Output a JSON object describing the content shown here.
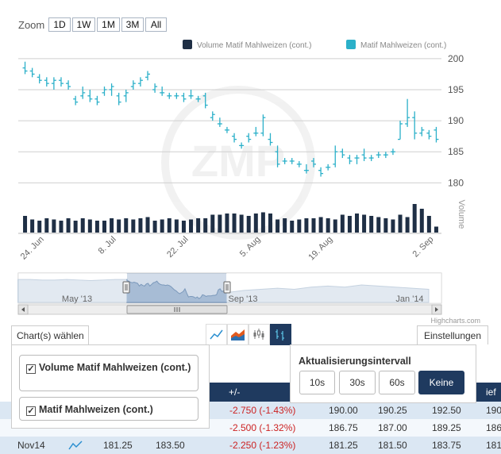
{
  "zoom": {
    "label": "Zoom",
    "buttons": [
      "1D",
      "1W",
      "1M",
      "3M",
      "All"
    ]
  },
  "legend": [
    {
      "name": "Volume Matif Mahlweizen (cont.)",
      "color": "#1f2f45"
    },
    {
      "name": "Matif Mahlweizen (cont.)",
      "color": "#2bb0c9"
    }
  ],
  "watermark": "ZMP",
  "credits": "Highcharts.com",
  "navigator": {
    "labels": [
      "May '13",
      "Sep '13",
      "Jan '14"
    ]
  },
  "chart_data": {
    "type": "ohlc",
    "title": "",
    "yaxis_price": {
      "ticks": [
        180,
        185,
        190,
        195,
        200
      ],
      "ylim": [
        178,
        201
      ]
    },
    "yaxis_volume_label": "Volume",
    "x_tick_labels": [
      "24. Jun",
      "8. Jul",
      "22. Jul",
      "5. Aug",
      "19. Aug",
      "2. Sep"
    ],
    "series": [
      {
        "name": "Matif Mahlweizen (cont.)",
        "color": "#2bb0c9",
        "ohlc": [
          [
            198.5,
            199.5,
            197.5,
            198.0
          ],
          [
            198.0,
            198.5,
            197.0,
            197.5
          ],
          [
            197.0,
            197.5,
            196.0,
            196.5
          ],
          [
            196.5,
            197.0,
            195.5,
            196.0
          ],
          [
            196.0,
            197.0,
            195.0,
            196.5
          ],
          [
            196.5,
            197.0,
            195.5,
            196.0
          ],
          [
            196.0,
            196.5,
            195.0,
            195.5
          ],
          [
            193.5,
            194.0,
            192.5,
            193.0
          ],
          [
            194.0,
            195.5,
            193.5,
            194.5
          ],
          [
            194.0,
            195.0,
            193.0,
            193.5
          ],
          [
            193.5,
            194.0,
            192.5,
            193.0
          ],
          [
            194.5,
            195.5,
            194.0,
            195.0
          ],
          [
            195.0,
            196.0,
            194.0,
            195.5
          ],
          [
            194.0,
            194.5,
            192.5,
            193.0
          ],
          [
            194.0,
            195.0,
            193.0,
            194.5
          ],
          [
            195.5,
            196.5,
            195.0,
            196.0
          ],
          [
            196.0,
            197.0,
            195.5,
            196.5
          ],
          [
            197.0,
            198.0,
            196.5,
            197.5
          ],
          [
            195.0,
            196.0,
            194.5,
            195.5
          ],
          [
            194.5,
            195.5,
            194.0,
            194.5
          ],
          [
            194.0,
            194.5,
            193.5,
            194.0
          ],
          [
            194.0,
            194.5,
            193.5,
            194.0
          ],
          [
            194.0,
            194.5,
            193.0,
            193.5
          ],
          [
            194.0,
            195.0,
            193.5,
            194.0
          ],
          [
            193.5,
            194.0,
            193.0,
            193.5
          ],
          [
            194.0,
            194.5,
            192.0,
            192.5
          ],
          [
            190.5,
            191.5,
            190.0,
            191.0
          ],
          [
            189.5,
            190.5,
            189.0,
            189.5
          ],
          [
            188.5,
            189.0,
            188.0,
            188.5
          ],
          [
            187.5,
            188.0,
            186.5,
            187.0
          ],
          [
            186.0,
            186.5,
            185.5,
            186.0
          ],
          [
            187.5,
            188.0,
            186.5,
            187.0
          ],
          [
            188.0,
            189.0,
            187.5,
            188.0
          ],
          [
            188.0,
            191.0,
            187.5,
            190.5
          ],
          [
            187.0,
            188.0,
            186.0,
            186.5
          ],
          [
            185.0,
            186.0,
            182.5,
            183.0
          ],
          [
            183.5,
            184.0,
            183.0,
            183.5
          ],
          [
            183.5,
            184.0,
            183.0,
            183.5
          ],
          [
            183.0,
            183.5,
            182.5,
            183.0
          ],
          [
            182.0,
            183.0,
            181.5,
            182.0
          ],
          [
            183.5,
            184.0,
            182.5,
            183.0
          ],
          [
            182.0,
            182.5,
            181.0,
            181.5
          ],
          [
            182.5,
            183.0,
            182.0,
            182.5
          ],
          [
            183.0,
            186.0,
            182.5,
            185.0
          ],
          [
            185.0,
            185.5,
            184.0,
            184.5
          ],
          [
            184.0,
            184.5,
            183.0,
            183.5
          ],
          [
            184.0,
            184.5,
            183.0,
            184.0
          ],
          [
            184.5,
            185.5,
            183.5,
            184.0
          ],
          [
            184.0,
            184.5,
            183.5,
            184.0
          ],
          [
            184.5,
            185.0,
            184.0,
            184.5
          ],
          [
            184.5,
            185.0,
            184.0,
            184.5
          ],
          [
            185.0,
            185.5,
            184.5,
            185.0
          ],
          [
            187.0,
            190.0,
            187.0,
            189.5
          ],
          [
            189.5,
            193.5,
            189.0,
            190.5
          ],
          [
            190.5,
            191.5,
            187.0,
            188.0
          ],
          [
            188.0,
            189.0,
            187.5,
            188.5
          ],
          [
            188.0,
            188.5,
            187.0,
            187.5
          ],
          [
            188.5,
            189.0,
            186.5,
            187.0
          ]
        ]
      },
      {
        "name": "Volume Matif Mahlweizen (cont.)",
        "color": "#1f2f45",
        "values": [
          14,
          11,
          10,
          12,
          11,
          10,
          12,
          10,
          12,
          11,
          10,
          10,
          12,
          11,
          12,
          11,
          12,
          13,
          10,
          11,
          12,
          11,
          10,
          11,
          12,
          12,
          15,
          15,
          16,
          16,
          15,
          14,
          16,
          17,
          16,
          11,
          12,
          10,
          11,
          12,
          12,
          13,
          12,
          11,
          15,
          14,
          16,
          15,
          14,
          13,
          12,
          11,
          15,
          13,
          24,
          20,
          14,
          5
        ]
      }
    ]
  },
  "tabs": {
    "chart_select": "Chart(s) wählen",
    "settings": "Einstellungen"
  },
  "chart_type_buttons": [
    "line-chart-icon",
    "area-chart-icon",
    "candlestick-icon",
    "ohlc-icon"
  ],
  "chart_panel": {
    "items": [
      {
        "label": "Volume Matif Mahlweizen (cont.)",
        "checked": true
      },
      {
        "label": "Matif Mahlweizen (cont.)",
        "checked": true
      }
    ]
  },
  "interval_panel": {
    "title": "Aktualisierungsintervall",
    "buttons": [
      "10s",
      "30s",
      "60s",
      "Keine"
    ],
    "active": "Keine"
  },
  "table": {
    "headers": [
      "+/-",
      "",
      "",
      "",
      "ief"
    ],
    "rows": [
      {
        "contract": "",
        "last": "",
        "prev": "",
        "change": "-2.750 (-1.43%)",
        "c1": "190.00",
        "c2": "190.25",
        "c3": "192.50",
        "c4": "190"
      },
      {
        "contract": "",
        "last": "",
        "prev": "",
        "change": "-2.500 (-1.32%)",
        "c1": "186.75",
        "c2": "187.00",
        "c3": "189.25",
        "c4": "186"
      },
      {
        "contract": "Nov14",
        "last": "181.25",
        "prev": "183.50",
        "change": "-2.250 (-1.23%)",
        "c1": "181.25",
        "c2": "181.50",
        "c3": "183.75",
        "c4": "181"
      }
    ]
  }
}
